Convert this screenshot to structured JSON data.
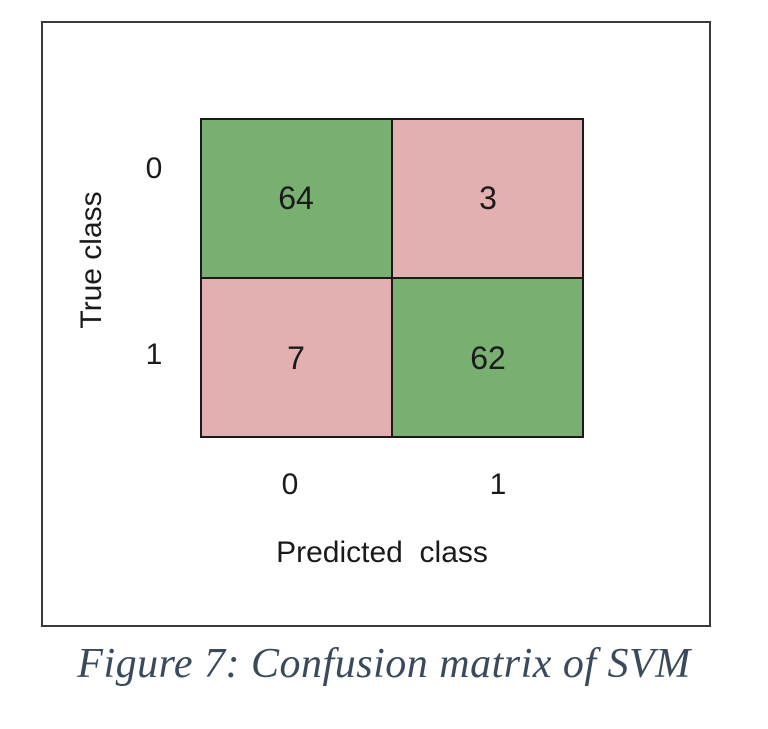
{
  "chart_data": {
    "type": "heatmap",
    "title": "",
    "xlabel": "Predicted  class",
    "ylabel": "True class",
    "x_ticks": [
      "0",
      "1"
    ],
    "y_ticks": [
      "0",
      "1"
    ],
    "matrix": [
      [
        64,
        3
      ],
      [
        7,
        62
      ]
    ],
    "colors": {
      "correct": "#79b071",
      "incorrect": "#e3b0b2",
      "grid": "#1a1a1a"
    }
  },
  "caption": "Figure 7: Confusion matrix of SVM"
}
